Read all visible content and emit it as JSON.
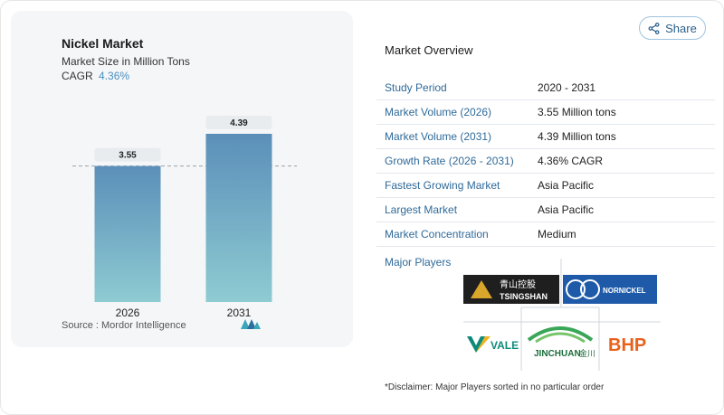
{
  "card": {
    "title": "Nickel Market",
    "subtitle": "Market Size in Million Tons",
    "cagr_label": "CAGR",
    "cagr_value": "4.36%",
    "source": "Source :  Mordor Intelligence"
  },
  "chart_data": {
    "type": "bar",
    "categories": [
      "2026",
      "2031"
    ],
    "values": [
      3.55,
      4.39
    ],
    "data_labels": [
      "3.55",
      "4.39"
    ],
    "title": "Nickel Market",
    "ylabel": "",
    "xlabel": "",
    "ylim": [
      0,
      4.39
    ],
    "grid": false,
    "reference_line": 3.55,
    "colors": {
      "bar_top": "#5b8fb9",
      "bar_bottom": "#8ecbd2",
      "label_bg": "#e8ecef"
    }
  },
  "share": {
    "label": "Share",
    "icon": "share-icon"
  },
  "overview": {
    "title": "Market Overview",
    "rows": [
      {
        "key": "Study Period",
        "value": "2020 - 2031"
      },
      {
        "key": "Market Volume (2026)",
        "value": "3.55 Million tons"
      },
      {
        "key": "Market Volume (2031)",
        "value": "4.39 Million tons"
      },
      {
        "key": "Growth Rate (2026 - 2031)",
        "value": "4.36% CAGR"
      },
      {
        "key": "Fastest Growing Market",
        "value": "Asia Pacific"
      },
      {
        "key": "Largest Market",
        "value": "Asia Pacific"
      },
      {
        "key": "Market Concentration",
        "value": "Medium"
      }
    ],
    "players_label": "Major Players",
    "players": [
      {
        "name": "TSINGSHAN",
        "cn": "青山控股"
      },
      {
        "name": "NORNICKEL"
      },
      {
        "name": "VALE"
      },
      {
        "name": "JINCHUAN",
        "cn": "金川"
      },
      {
        "name": "BHP"
      }
    ],
    "disclaimer": "*Disclaimer: Major Players sorted in no particular order"
  }
}
